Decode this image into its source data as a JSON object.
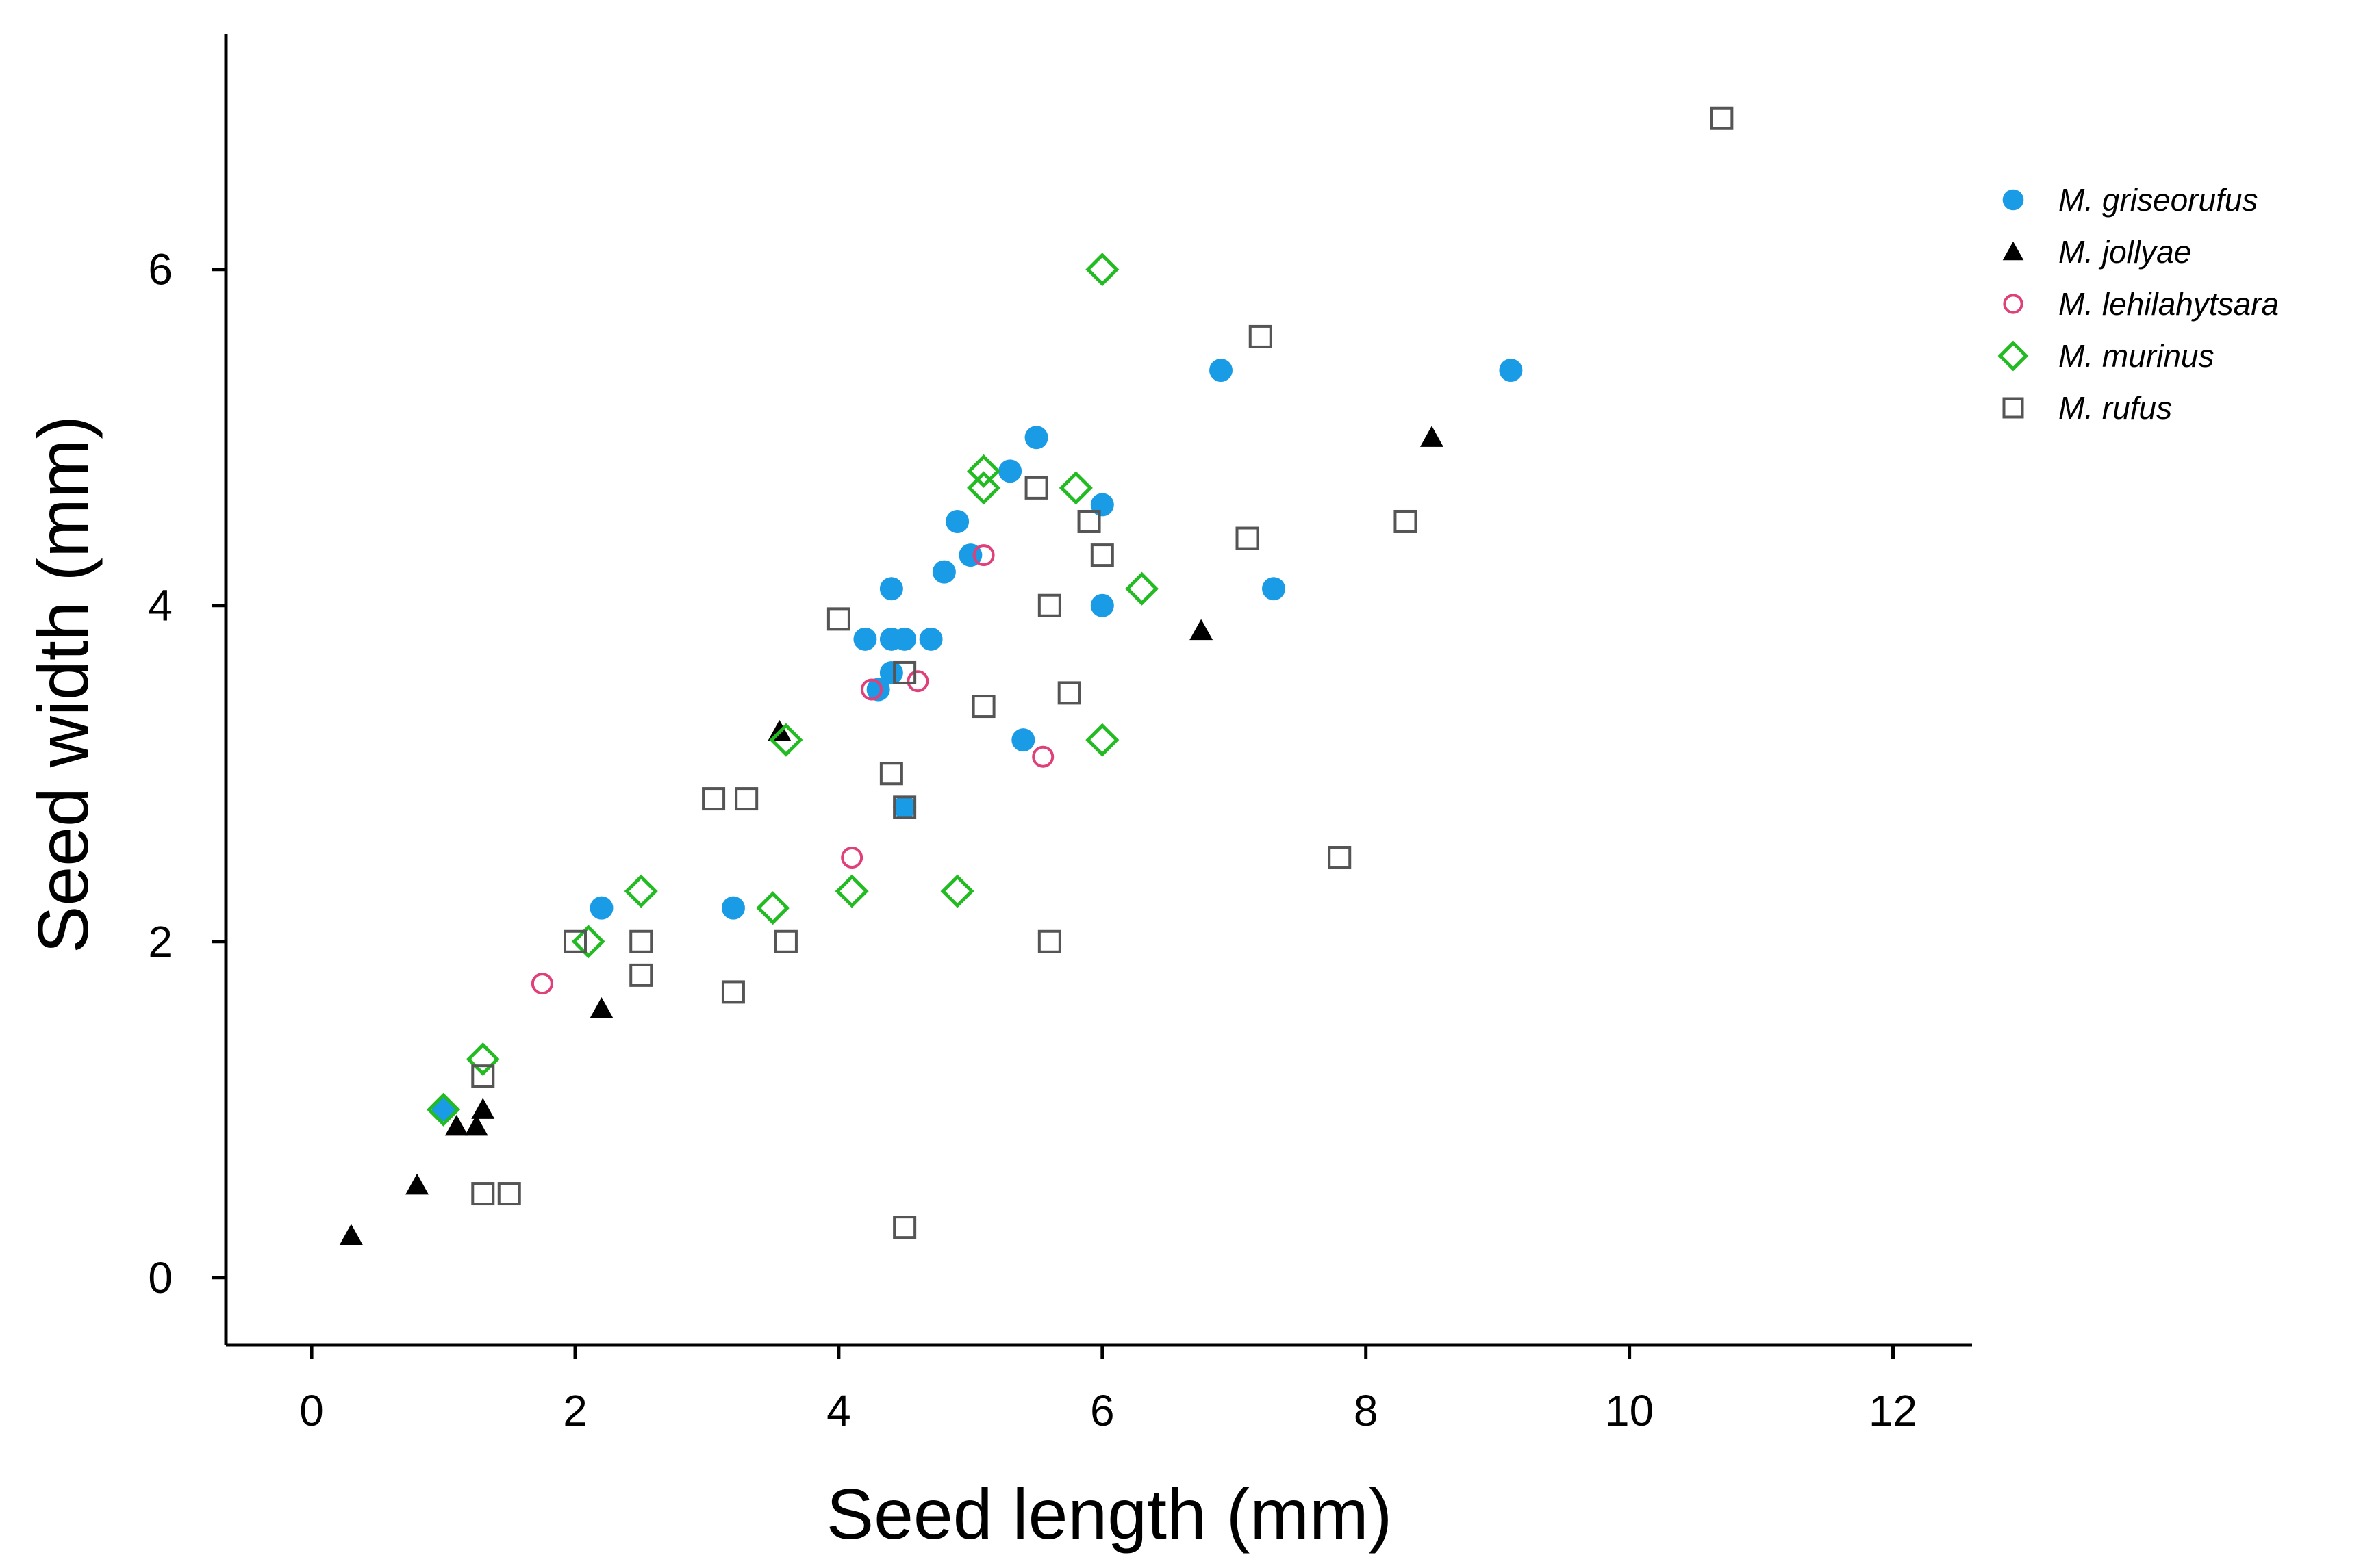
{
  "chart_data": {
    "type": "scatter",
    "title": "",
    "xlabel": "Seed length (mm)",
    "ylabel": "Seed width (mm)",
    "xlim": [
      -0.65,
      12.6
    ],
    "ylim": [
      -0.4,
      7.4
    ],
    "xticks": [
      0,
      2,
      4,
      6,
      8,
      10,
      12
    ],
    "yticks": [
      0,
      2,
      4,
      6
    ],
    "xtick_labels": [
      "0",
      "2",
      "4",
      "6",
      "8",
      "10",
      "12"
    ],
    "ytick_labels": [
      "0",
      "2",
      "4",
      "6"
    ],
    "grid": false,
    "legend_position": "top-right",
    "series": [
      {
        "name": "M. griseorufus",
        "marker": "filled-circle",
        "color": "#1a9be6",
        "points": [
          [
            1.0,
            1.0
          ],
          [
            2.2,
            2.2
          ],
          [
            3.2,
            2.2
          ],
          [
            4.2,
            3.8
          ],
          [
            4.3,
            3.5
          ],
          [
            4.4,
            3.6
          ],
          [
            4.4,
            3.8
          ],
          [
            4.5,
            3.8
          ],
          [
            4.4,
            4.1
          ],
          [
            4.7,
            3.8
          ],
          [
            4.8,
            4.2
          ],
          [
            4.9,
            4.5
          ],
          [
            5.0,
            4.3
          ],
          [
            5.3,
            4.8
          ],
          [
            5.5,
            5.0
          ],
          [
            5.4,
            3.2
          ],
          [
            4.5,
            2.8
          ],
          [
            6.0,
            4.6
          ],
          [
            6.0,
            4.0
          ],
          [
            6.9,
            5.4
          ],
          [
            7.3,
            4.1
          ],
          [
            9.1,
            5.4
          ]
        ]
      },
      {
        "name": "M. jollyae",
        "marker": "filled-triangle",
        "color": "#000000",
        "points": [
          [
            0.3,
            0.25
          ],
          [
            0.8,
            0.55
          ],
          [
            1.1,
            0.9
          ],
          [
            1.25,
            0.9
          ],
          [
            1.3,
            1.0
          ],
          [
            2.2,
            1.6
          ],
          [
            3.55,
            3.25
          ],
          [
            6.75,
            3.85
          ],
          [
            8.5,
            5.0
          ]
        ]
      },
      {
        "name": "M. lehilahytsara",
        "marker": "open-circle",
        "color": "#e0407a",
        "points": [
          [
            1.75,
            1.75
          ],
          [
            4.1,
            2.5
          ],
          [
            4.25,
            3.5
          ],
          [
            4.6,
            3.55
          ],
          [
            5.1,
            4.3
          ],
          [
            5.55,
            3.1
          ]
        ]
      },
      {
        "name": "M. murinus",
        "marker": "open-diamond",
        "color": "#22bb22",
        "points": [
          [
            1.0,
            1.0
          ],
          [
            1.3,
            1.3
          ],
          [
            2.1,
            2.0
          ],
          [
            2.5,
            2.3
          ],
          [
            3.5,
            2.2
          ],
          [
            3.6,
            3.2
          ],
          [
            4.1,
            2.3
          ],
          [
            4.9,
            2.3
          ],
          [
            5.1,
            4.8
          ],
          [
            5.1,
            4.7
          ],
          [
            5.8,
            4.7
          ],
          [
            6.0,
            6.0
          ],
          [
            6.0,
            3.2
          ],
          [
            6.3,
            4.1
          ]
        ]
      },
      {
        "name": "M. rufus",
        "marker": "open-square",
        "color": "#555555",
        "points": [
          [
            1.3,
            0.5
          ],
          [
            1.5,
            0.5
          ],
          [
            1.3,
            1.2
          ],
          [
            2.0,
            2.0
          ],
          [
            2.5,
            2.0
          ],
          [
            2.5,
            1.8
          ],
          [
            3.05,
            2.85
          ],
          [
            3.3,
            2.85
          ],
          [
            3.2,
            1.7
          ],
          [
            3.6,
            2.0
          ],
          [
            4.0,
            3.92
          ],
          [
            4.4,
            3.0
          ],
          [
            4.5,
            3.6
          ],
          [
            4.5,
            2.8
          ],
          [
            4.5,
            0.3
          ],
          [
            5.1,
            3.4
          ],
          [
            5.5,
            4.7
          ],
          [
            5.6,
            4.0
          ],
          [
            5.6,
            2.0
          ],
          [
            5.75,
            3.48
          ],
          [
            5.9,
            4.5
          ],
          [
            6.0,
            4.3
          ],
          [
            7.1,
            4.4
          ],
          [
            7.2,
            5.6
          ],
          [
            7.8,
            2.5
          ],
          [
            8.3,
            4.5
          ],
          [
            10.7,
            6.9
          ]
        ]
      }
    ]
  }
}
